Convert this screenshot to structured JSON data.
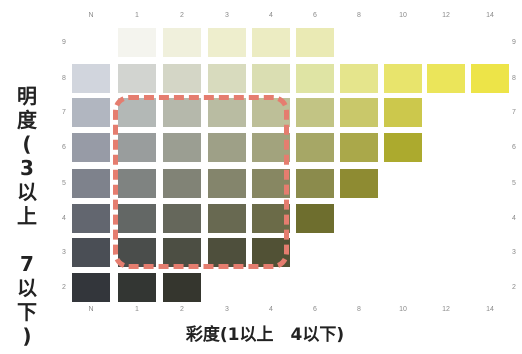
{
  "chroma_ticks": [
    "N",
    "1",
    "2",
    "3",
    "4",
    "6",
    "8",
    "10",
    "12",
    "14"
  ],
  "value_ticks": [
    "9",
    "8",
    "7",
    "6",
    "5",
    "4",
    "3",
    "2"
  ],
  "vertical_title": "明\n度\n(\n3\n以\n上\n\n7\n以\n下\n)",
  "bottom_title": "彩度(1以上　4以下)",
  "highlight_color": "#e57d6f",
  "chips": [
    {
      "value": "9",
      "chroma": "1",
      "color": "#f4f4ee"
    },
    {
      "value": "9",
      "chroma": "2",
      "color": "#f0f0dc"
    },
    {
      "value": "9",
      "chroma": "3",
      "color": "#eeeecd"
    },
    {
      "value": "9",
      "chroma": "4",
      "color": "#ececc2"
    },
    {
      "value": "9",
      "chroma": "6",
      "color": "#eaeab4"
    },
    {
      "value": "8",
      "chroma": "N",
      "color": "#d1d5dd"
    },
    {
      "value": "8",
      "chroma": "1",
      "color": "#d2d4d0"
    },
    {
      "value": "8",
      "chroma": "2",
      "color": "#d4d6c6"
    },
    {
      "value": "8",
      "chroma": "3",
      "color": "#d8dbbe"
    },
    {
      "value": "8",
      "chroma": "4",
      "color": "#dadeb2"
    },
    {
      "value": "8",
      "chroma": "6",
      "color": "#dfe4a4"
    },
    {
      "value": "8",
      "chroma": "8",
      "color": "#e5e58c"
    },
    {
      "value": "8",
      "chroma": "10",
      "color": "#e8e46c"
    },
    {
      "value": "8",
      "chroma": "12",
      "color": "#ebe55a"
    },
    {
      "value": "8",
      "chroma": "14",
      "color": "#ede448"
    },
    {
      "value": "7",
      "chroma": "N",
      "color": "#b1b6c0"
    },
    {
      "value": "7",
      "chroma": "1",
      "color": "#b3b8b6"
    },
    {
      "value": "7",
      "chroma": "2",
      "color": "#b5b8ab"
    },
    {
      "value": "7",
      "chroma": "3",
      "color": "#b9bca2"
    },
    {
      "value": "7",
      "chroma": "4",
      "color": "#bdbf98"
    },
    {
      "value": "7",
      "chroma": "6",
      "color": "#c2c484"
    },
    {
      "value": "7",
      "chroma": "8",
      "color": "#c9c86a"
    },
    {
      "value": "7",
      "chroma": "10",
      "color": "#ccc84c"
    },
    {
      "value": "6",
      "chroma": "N",
      "color": "#979ba6"
    },
    {
      "value": "6",
      "chroma": "1",
      "color": "#999d9d"
    },
    {
      "value": "6",
      "chroma": "2",
      "color": "#9b9e92"
    },
    {
      "value": "6",
      "chroma": "3",
      "color": "#9ea087"
    },
    {
      "value": "6",
      "chroma": "4",
      "color": "#a2a37d"
    },
    {
      "value": "6",
      "chroma": "6",
      "color": "#a6a766"
    },
    {
      "value": "6",
      "chroma": "8",
      "color": "#aaa84a"
    },
    {
      "value": "6",
      "chroma": "10",
      "color": "#acaa2e"
    },
    {
      "value": "5",
      "chroma": "N",
      "color": "#7e828c"
    },
    {
      "value": "5",
      "chroma": "1",
      "color": "#7f8381"
    },
    {
      "value": "5",
      "chroma": "2",
      "color": "#818376"
    },
    {
      "value": "5",
      "chroma": "3",
      "color": "#84856c"
    },
    {
      "value": "5",
      "chroma": "4",
      "color": "#878762"
    },
    {
      "value": "5",
      "chroma": "6",
      "color": "#8b8b4c"
    },
    {
      "value": "5",
      "chroma": "8",
      "color": "#8e8b32"
    },
    {
      "value": "4",
      "chroma": "N",
      "color": "#62666f"
    },
    {
      "value": "4",
      "chroma": "1",
      "color": "#636765"
    },
    {
      "value": "4",
      "chroma": "2",
      "color": "#65675b"
    },
    {
      "value": "4",
      "chroma": "3",
      "color": "#686951"
    },
    {
      "value": "4",
      "chroma": "4",
      "color": "#6b6b48"
    },
    {
      "value": "4",
      "chroma": "6",
      "color": "#6e6e2e"
    },
    {
      "value": "3",
      "chroma": "N",
      "color": "#4a4e55"
    },
    {
      "value": "3",
      "chroma": "1",
      "color": "#4a4d4b"
    },
    {
      "value": "3",
      "chroma": "2",
      "color": "#4c4e43"
    },
    {
      "value": "3",
      "chroma": "3",
      "color": "#4e4f3c"
    },
    {
      "value": "3",
      "chroma": "4",
      "color": "#515135"
    },
    {
      "value": "2",
      "chroma": "N",
      "color": "#33363b"
    },
    {
      "value": "2",
      "chroma": "1",
      "color": "#333633"
    },
    {
      "value": "2",
      "chroma": "2",
      "color": "#35362e"
    }
  ]
}
